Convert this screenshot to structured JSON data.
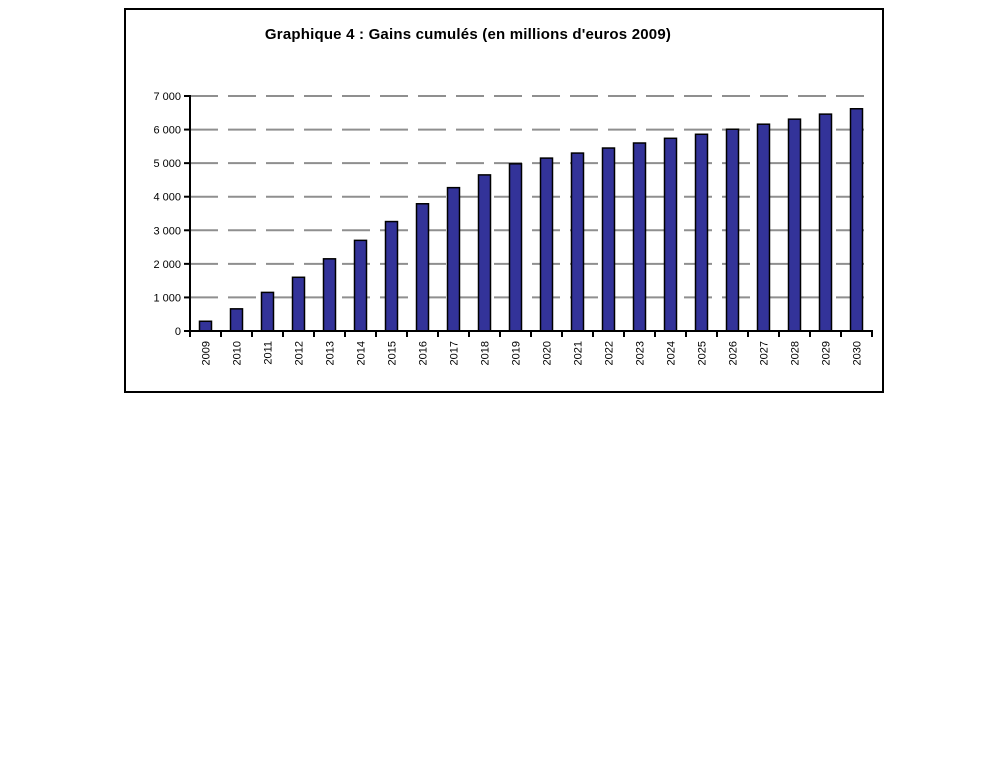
{
  "figure": {
    "title": "Graphique 4 : Gains cumulés (en millions d'euros 2009)"
  },
  "chart_data": {
    "type": "bar",
    "title": "Graphique 4 : Gains cumulés (en millions d'euros 2009)",
    "categories": [
      "2009",
      "2010",
      "2011",
      "2012",
      "2013",
      "2014",
      "2015",
      "2016",
      "2017",
      "2018",
      "2019",
      "2020",
      "2021",
      "2022",
      "2023",
      "2024",
      "2025",
      "2026",
      "2027",
      "2028",
      "2029",
      "2030"
    ],
    "values": [
      290,
      660,
      1150,
      1600,
      2150,
      2700,
      3260,
      3790,
      4270,
      4650,
      4980,
      5150,
      5300,
      5450,
      5600,
      5740,
      5860,
      6010,
      6160,
      6310,
      6460,
      6620
    ],
    "xlabel": "",
    "ylabel": "",
    "ylim": [
      0,
      7000
    ],
    "ytick_step": 1000,
    "ytick_labels": [
      "0",
      "1 000",
      "2 000",
      "3 000",
      "4 000",
      "5 000",
      "6 000",
      "7 000"
    ],
    "x_label_rotation": -90,
    "grid": "horizontal-dashed",
    "legend": "none",
    "colors": {
      "bar_fill": "#333399",
      "bar_border": "#000000",
      "gridline": "#8f8f8f",
      "axis": "#000000",
      "text": "#000000",
      "figure_border": "#000000",
      "background": "#ffffff"
    }
  }
}
